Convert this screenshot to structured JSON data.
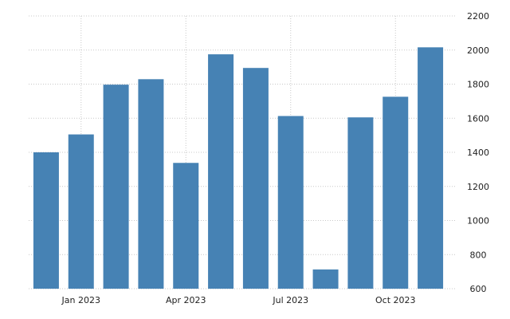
{
  "chart_data": {
    "type": "bar",
    "x": [
      "2022-12",
      "2023-01",
      "2023-02",
      "2023-03",
      "2023-04",
      "2023-05",
      "2023-06",
      "2023-07",
      "2023-08",
      "2023-09",
      "2023-10",
      "2023-11"
    ],
    "values": [
      1400,
      1505,
      1797,
      1829,
      1338,
      1975,
      1895,
      1613,
      713,
      1605,
      1726,
      2016
    ],
    "ylim": [
      600,
      2200
    ],
    "y_ticks": [
      "600",
      "800",
      "1000",
      "1200",
      "1400",
      "1600",
      "1800",
      "2000",
      "2200"
    ],
    "x_tick_labels": [
      {
        "label": "Jan 2023",
        "index": 1
      },
      {
        "label": "Apr 2023",
        "index": 4
      },
      {
        "label": "Jul 2023",
        "index": 7
      },
      {
        "label": "Oct 2023",
        "index": 10
      }
    ],
    "y_axis_side": "right",
    "grid": true,
    "bar_color": "#4682b4",
    "title": "",
    "xlabel": "",
    "ylabel": ""
  }
}
